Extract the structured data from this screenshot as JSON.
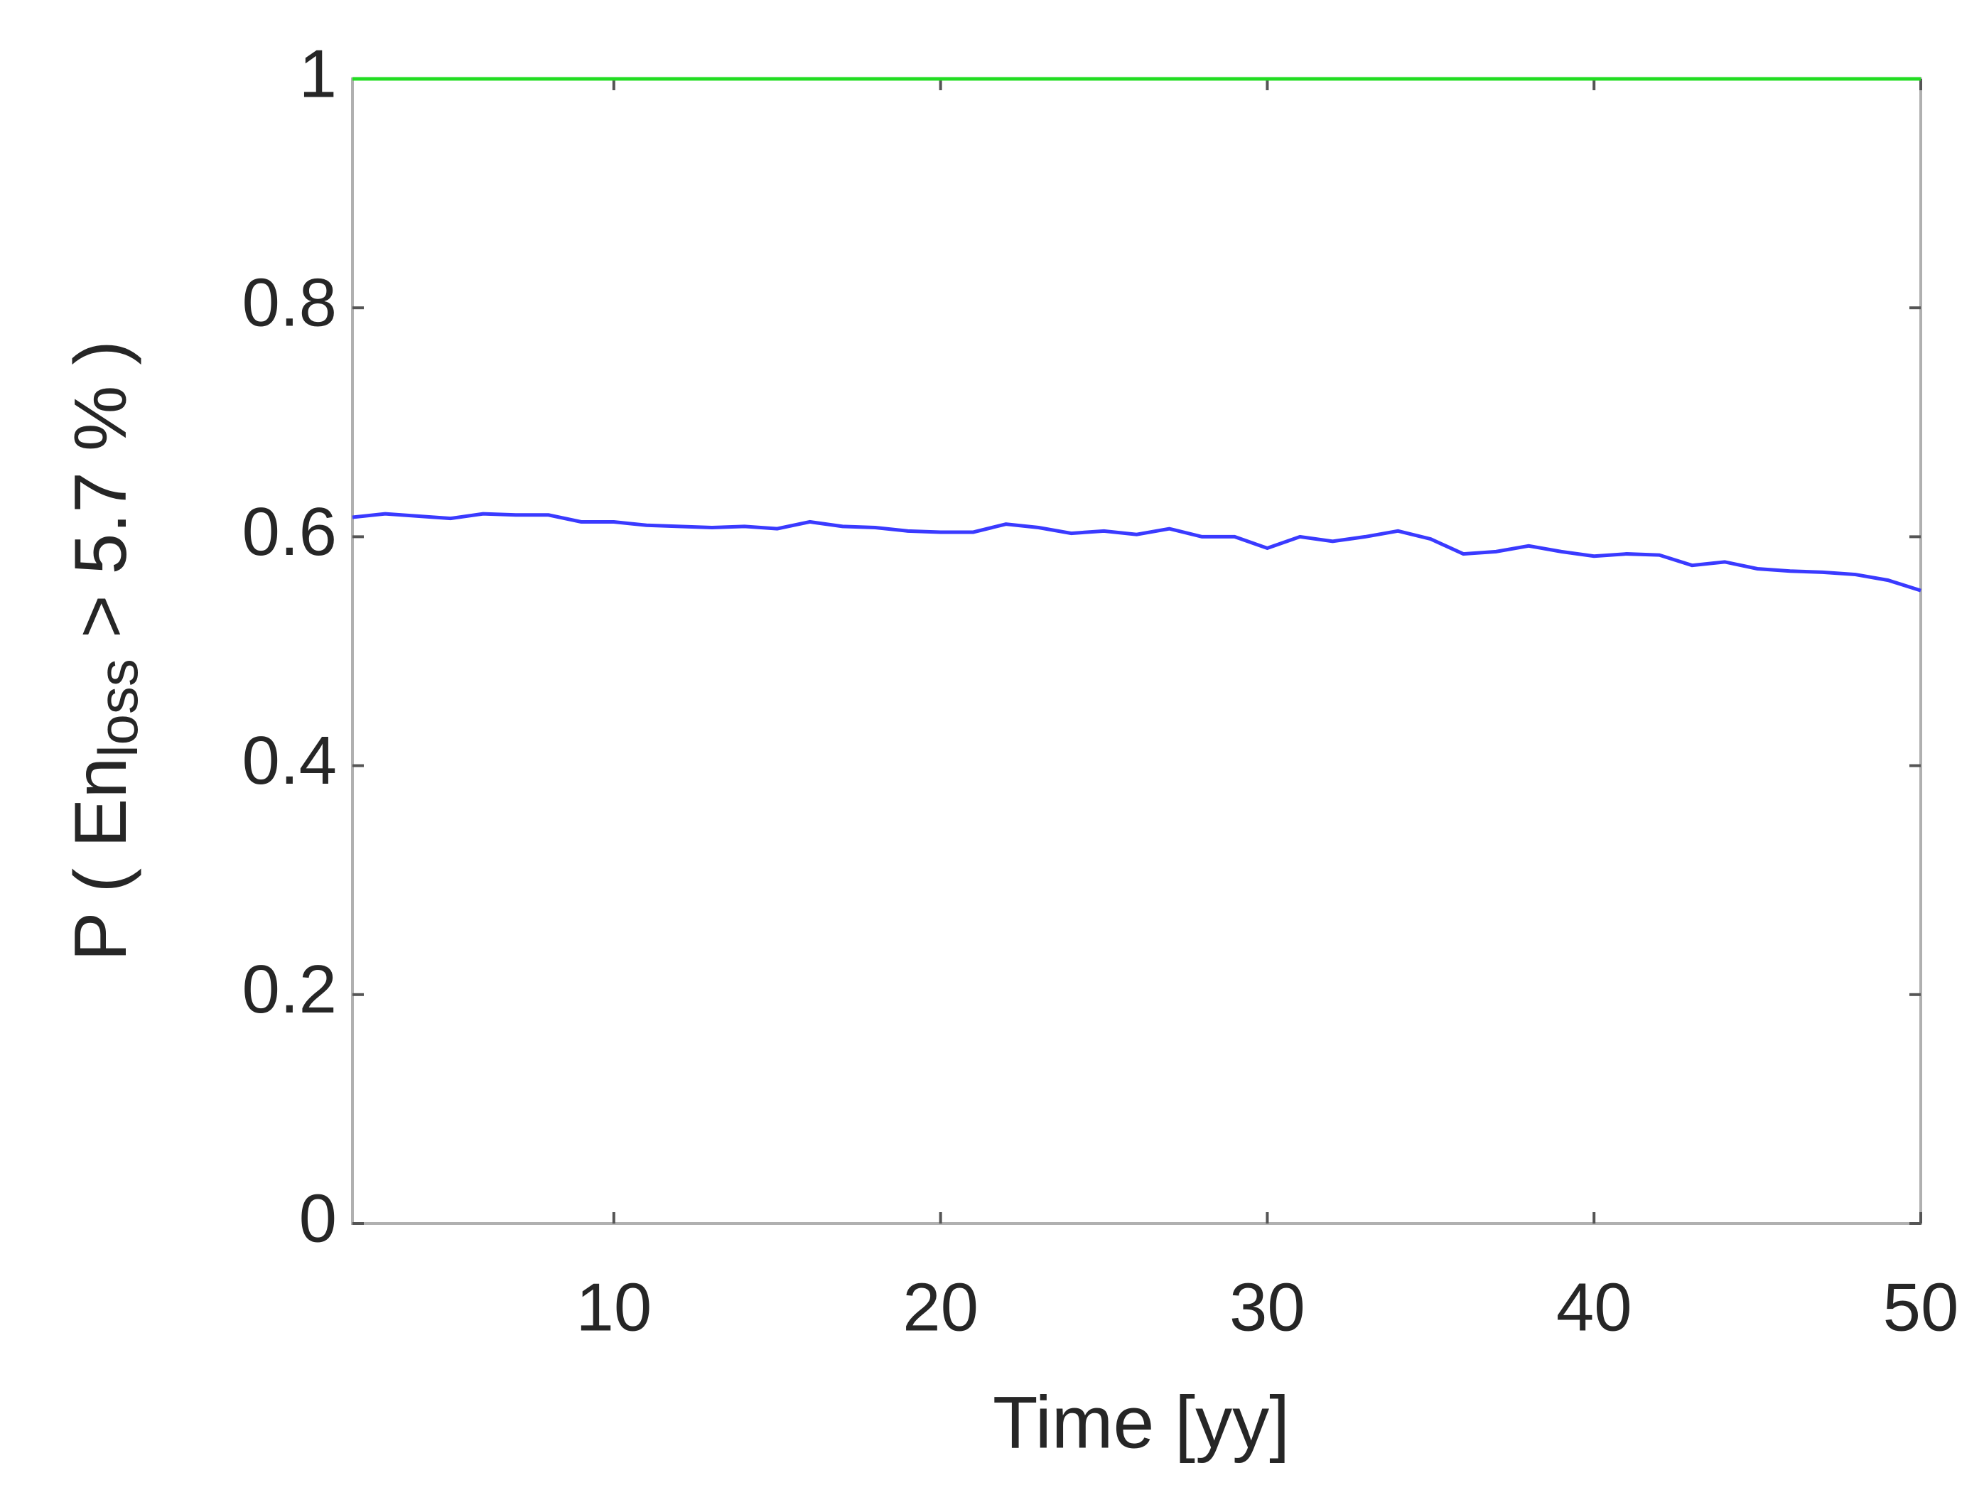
{
  "chart_data": {
    "type": "line",
    "x_label": "Time [yy]",
    "y_label": {
      "main": "P ( En",
      "subscript": "loss",
      "rest": " > 5.7 % )"
    },
    "x": [
      2,
      3,
      4,
      5,
      6,
      7,
      8,
      9,
      10,
      11,
      12,
      13,
      14,
      15,
      16,
      17,
      18,
      19,
      20,
      21,
      22,
      23,
      24,
      25,
      26,
      27,
      28,
      29,
      30,
      31,
      32,
      33,
      34,
      35,
      36,
      37,
      38,
      39,
      40,
      41,
      42,
      43,
      44,
      45,
      46,
      47,
      48,
      49,
      50
    ],
    "series": [
      {
        "color": "#22dd22",
        "values": [
          1,
          1,
          1,
          1,
          1,
          1,
          1,
          1,
          1,
          1,
          1,
          1,
          1,
          1,
          1,
          1,
          1,
          1,
          1,
          1,
          1,
          1,
          1,
          1,
          1,
          1,
          1,
          1,
          1,
          1,
          1,
          1,
          1,
          1,
          1,
          1,
          1,
          1,
          1,
          1,
          1,
          1,
          1,
          1,
          1,
          1,
          1,
          1,
          1
        ]
      },
      {
        "color": "#3a3aff",
        "values": [
          0.617,
          0.62,
          0.618,
          0.616,
          0.62,
          0.619,
          0.619,
          0.613,
          0.613,
          0.61,
          0.609,
          0.608,
          0.609,
          0.607,
          0.613,
          0.609,
          0.608,
          0.605,
          0.604,
          0.604,
          0.611,
          0.608,
          0.603,
          0.605,
          0.602,
          0.607,
          0.6,
          0.6,
          0.59,
          0.6,
          0.596,
          0.6,
          0.605,
          0.598,
          0.585,
          0.587,
          0.592,
          0.587,
          0.583,
          0.585,
          0.584,
          0.575,
          0.578,
          0.572,
          0.57,
          0.569,
          0.567,
          0.562,
          0.553
        ]
      }
    ],
    "xlim": [
      2,
      50
    ],
    "xticks": [
      10,
      20,
      30,
      40,
      50
    ],
    "ylim": [
      0,
      1
    ],
    "yticks": [
      0,
      0.2,
      0.4,
      0.6,
      0.8,
      1
    ]
  }
}
